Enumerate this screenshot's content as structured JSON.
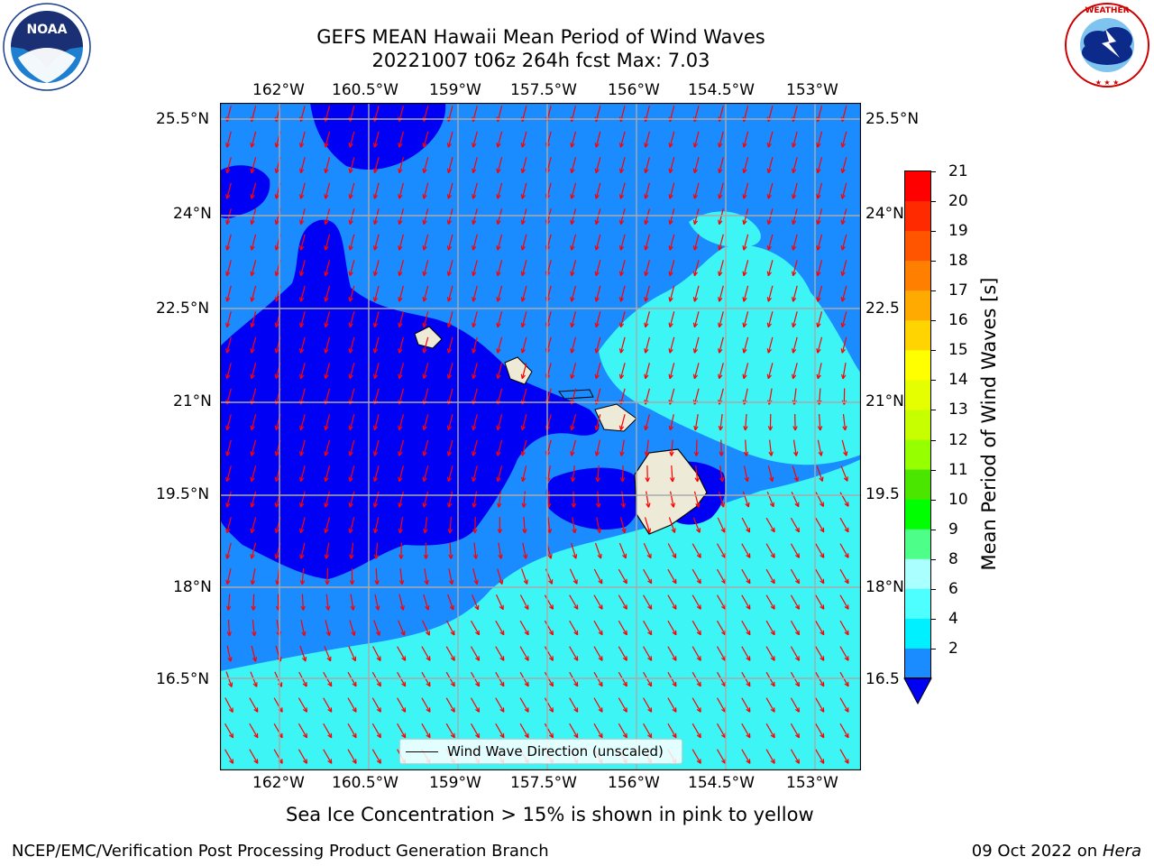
{
  "title": {
    "line1": "GEFS MEAN Hawaii Mean Period of Wind Waves",
    "line2": "20221007 t06z 264h fcst   Max: 7.03"
  },
  "logos": {
    "noaa_text": "NOAA",
    "noaa_ring_text": "NATIONAL OCEANIC AND ATMOSPHERIC ADMINISTRATION · U.S. DEPARTMENT OF COMMERCE",
    "nws_ring_text": "NATIONAL WEATHER SERVICE"
  },
  "map": {
    "lon_labels": [
      "162°W",
      "160.5°W",
      "159°W",
      "157.5°W",
      "156°W",
      "154.5°W",
      "153°W"
    ],
    "lat_labels": [
      "25.5°N",
      "24°N",
      "22.5°N",
      "21°N",
      "19.5°N",
      "18°N",
      "16.5°N"
    ],
    "right_lat_labels": [
      "25.5°N",
      "24°N",
      "22.5",
      "21°N",
      "19.5",
      "18°N",
      "16.5"
    ],
    "legend_label": "Wind Wave Direction (unscaled)",
    "colors": {
      "band_2_4": "#1A8CFF",
      "band_below_2": "#0000F5",
      "band_4_6": "#3DF5F5",
      "land": "#EDEAD8",
      "arrows": "#FF0000"
    }
  },
  "colorbar": {
    "label": "Mean Period of Wind Waves [s]",
    "ticks": [
      "21",
      "20",
      "19",
      "18",
      "17",
      "16",
      "15",
      "14",
      "13",
      "12",
      "11",
      "10",
      "9",
      "8",
      "6",
      "4",
      "2"
    ],
    "colors": [
      "#FF0000",
      "#FF2A00",
      "#FF5500",
      "#FF8000",
      "#FFAA00",
      "#FFD400",
      "#FFFF00",
      "#E6FF00",
      "#C8FF00",
      "#96FF00",
      "#4BE600",
      "#00FF00",
      "#4DFF88",
      "#AAFFFF",
      "#4DFFFF",
      "#00F0FF",
      "#1A8CFF"
    ],
    "extend_color": "#0000F5"
  },
  "caption": "Sea Ice Concentration > 15% is shown in pink to yellow",
  "footer": {
    "left": "NCEP/EMC/Verification Post Processing Product Generation Branch",
    "right_date": "09 Oct 2022 on ",
    "right_host": "Hera"
  }
}
